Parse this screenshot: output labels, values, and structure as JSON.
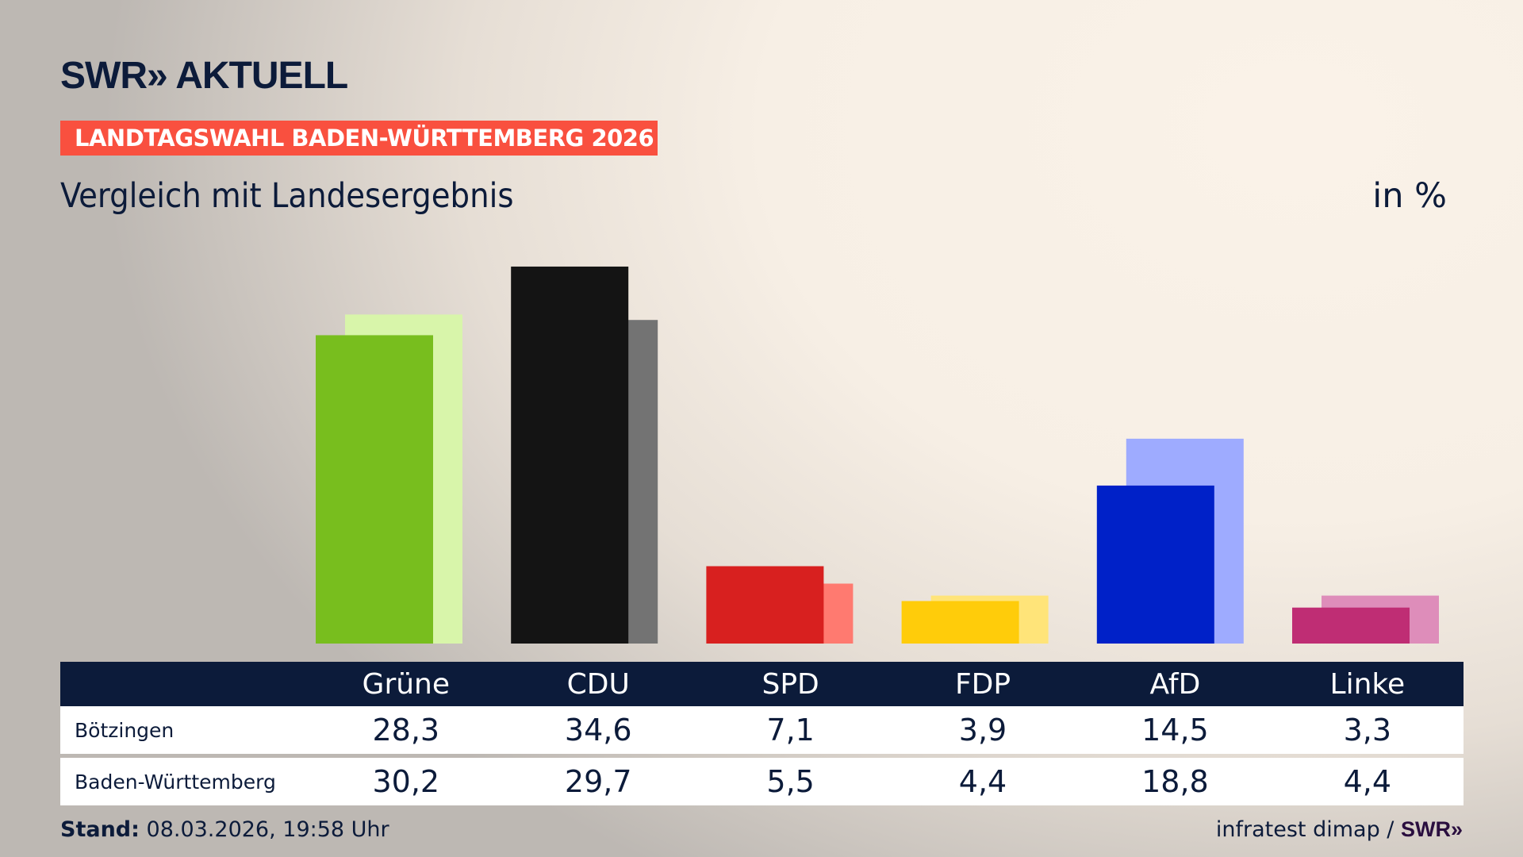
{
  "header": {
    "logo": "SWR» AKTUELL",
    "banner": "LANDTAGSWAHL BADEN-WÜRTTEMBERG 2026",
    "subtitle": "Vergleich mit Landesergebnis",
    "unit": "in %"
  },
  "chart_data": {
    "type": "bar",
    "categories": [
      "Grüne",
      "CDU",
      "SPD",
      "FDP",
      "AfD",
      "Linke"
    ],
    "series": [
      {
        "name": "Bötzingen",
        "values": [
          28.3,
          34.6,
          7.1,
          3.9,
          14.5,
          3.3
        ]
      },
      {
        "name": "Baden-Württemberg",
        "values": [
          30.2,
          29.7,
          5.5,
          4.4,
          18.8,
          4.4
        ]
      }
    ],
    "colors": {
      "Bötzingen": [
        "#78be1e",
        "#141414",
        "#d8201f",
        "#ffcc0a",
        "#0021c8",
        "#bf2d74"
      ],
      "Baden-Württemberg": [
        "#d8f5aa",
        "#737373",
        "#ff7a70",
        "#ffe479",
        "#9eabff",
        "#de8dba"
      ]
    },
    "ylim": [
      0,
      35
    ],
    "grid": false
  },
  "footer": {
    "stand_label": "Stand:",
    "stand_value": "08.03.2026, 19:58 Uhr",
    "source": "infratest dimap / ",
    "source_logo": "SWR»"
  }
}
